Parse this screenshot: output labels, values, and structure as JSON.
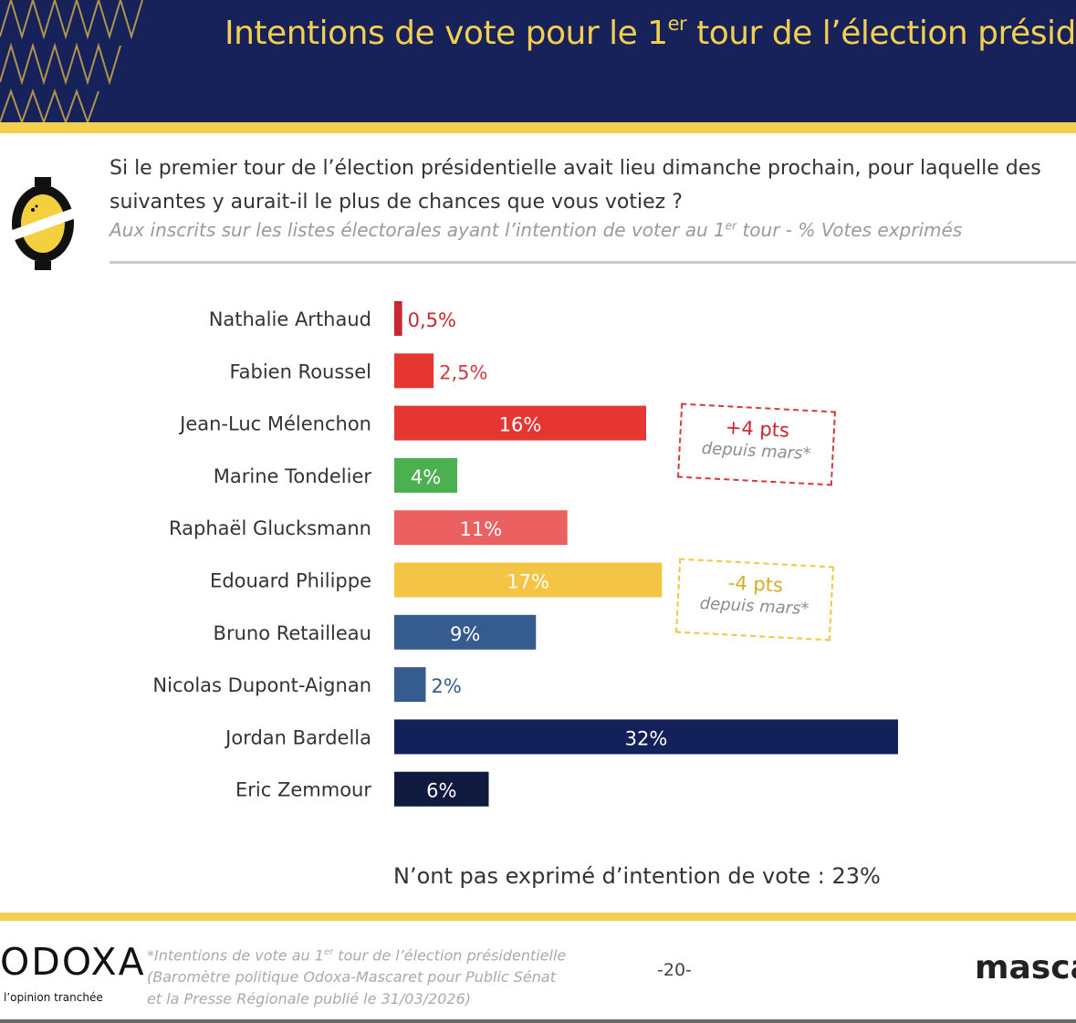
{
  "header": {
    "title_main": "Intentions de vote pour le 1",
    "title_sup": "er",
    "title_rest": " tour de l’élection présid"
  },
  "question": {
    "line1": "Si le premier tour de l’élection présidentielle avait lieu dimanche prochain, pour laquelle des",
    "line2": "suivantes y aurait-il le plus de chances que vous votiez ?"
  },
  "subtitle": {
    "part1": "Aux inscrits sur les listes électorales ayant l’intention de voter au 1",
    "sup": "er",
    "part2": " tour  - % Votes exprimés"
  },
  "chart_data": {
    "type": "bar",
    "orientation": "horizontal",
    "categories": [
      "Nathalie Arthaud",
      "Fabien Roussel",
      "Jean-Luc Mélenchon",
      "Marine Tondelier",
      "Raphaël Glucksmann",
      "Edouard Philippe",
      "Bruno Retailleau",
      "Nicolas Dupont-Aignan",
      "Jordan Bardella",
      "Eric Zemmour"
    ],
    "values": [
      0.5,
      2.5,
      16,
      4,
      11,
      17,
      9,
      2,
      32,
      6
    ],
    "labels": [
      "0,5%",
      "2,5%",
      "16%",
      "4%",
      "11%",
      "17%",
      "9%",
      "2%",
      "32%",
      "6%"
    ],
    "colors": [
      "#c52a30",
      "#e63631",
      "#e63631",
      "#4caf50",
      "#eb6060",
      "#f4c444",
      "#365b8e",
      "#365b8e",
      "#14205a",
      "#101a3e"
    ],
    "label_inside": [
      false,
      false,
      true,
      true,
      true,
      true,
      true,
      false,
      true,
      true
    ],
    "outside_label_colors": [
      "#c52a30",
      "#d8383f",
      null,
      null,
      null,
      null,
      null,
      "#365b8e",
      null,
      null
    ],
    "xlim": [
      0,
      32
    ]
  },
  "callouts": {
    "melenchon": {
      "big": "+4 pts",
      "small": "depuis mars*"
    },
    "philippe": {
      "big": "-4 pts",
      "small": "depuis mars*"
    }
  },
  "note": "N’ont pas exprimé d’intention de vote : 23%",
  "footer": {
    "logo": "ODOXA",
    "tagline": "l’opinion tranchée",
    "source_line1_a": "*Intentions de vote au 1",
    "source_line1_sup": "er",
    "source_line1_b": " tour de l’élection présidentielle",
    "source_line2": "(Baromètre politique Odoxa-Mascaret pour Public Sénat",
    "source_line3": "et la Presse Régionale publié le 31/03/2026)",
    "page": "-20-",
    "brand": "masca"
  }
}
